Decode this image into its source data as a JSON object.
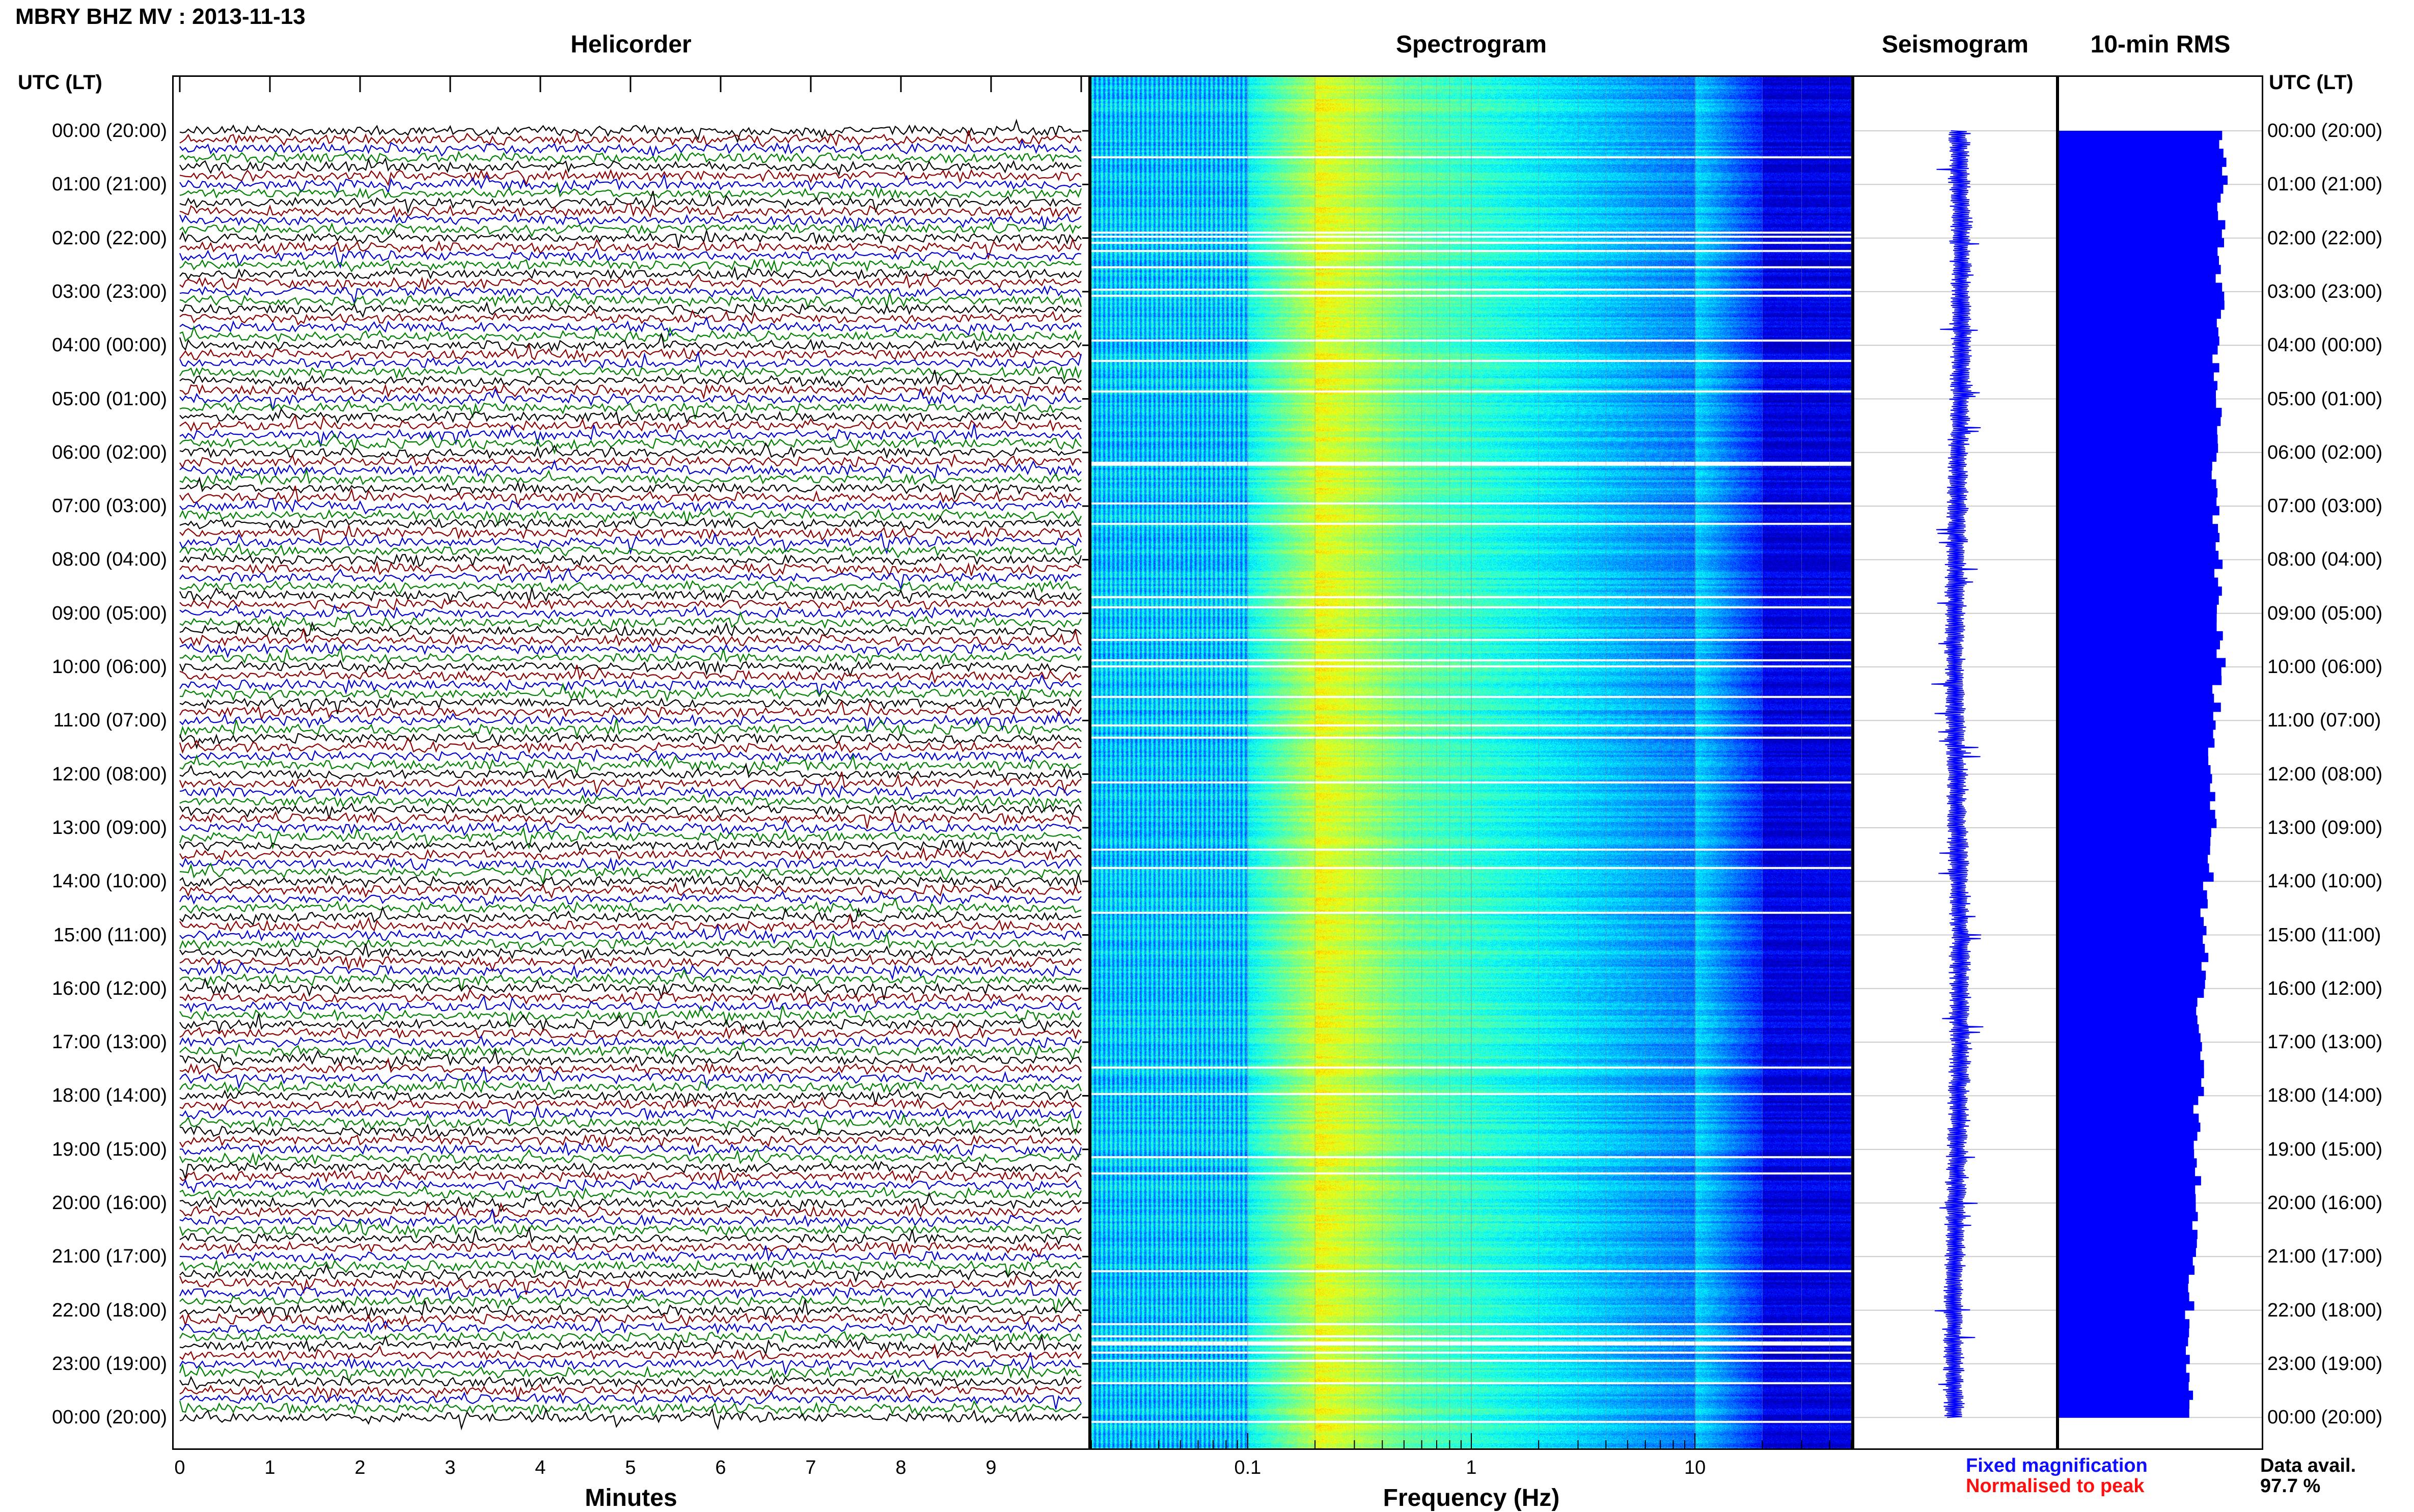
{
  "header": {
    "title": "MBRY BHZ MV : 2013-11-13",
    "utc_label_left": "UTC (LT)",
    "utc_label_right": "UTC (LT)"
  },
  "panels": {
    "helicorder": "Helicorder",
    "spectrogram": "Spectrogram",
    "seismogram": "Seismogram",
    "rms": "10-min RMS"
  },
  "time_labels": [
    "00:00 (20:00)",
    "01:00 (21:00)",
    "02:00 (22:00)",
    "03:00 (23:00)",
    "04:00 (00:00)",
    "05:00 (01:00)",
    "06:00 (02:00)",
    "07:00 (03:00)",
    "08:00 (04:00)",
    "09:00 (05:00)",
    "10:00 (06:00)",
    "11:00 (07:00)",
    "12:00 (08:00)",
    "13:00 (09:00)",
    "14:00 (10:00)",
    "15:00 (11:00)",
    "16:00 (12:00)",
    "17:00 (13:00)",
    "18:00 (14:00)",
    "19:00 (15:00)",
    "20:00 (16:00)",
    "21:00 (17:00)",
    "22:00 (18:00)",
    "23:00 (19:00)",
    "00:00 (20:00)"
  ],
  "x_axes": {
    "minutes_label": "Minutes",
    "minutes_ticks": [
      "0",
      "1",
      "2",
      "3",
      "4",
      "5",
      "6",
      "7",
      "8",
      "9"
    ],
    "frequency_label": "Frequency (Hz)",
    "frequency_ticks": [
      "0.1",
      "1",
      "10"
    ]
  },
  "legend": {
    "fixed": "Fixed magnification",
    "normalised": "Normalised to peak",
    "fixed_color": "#1010ff",
    "normalised_color": "#ff1010"
  },
  "data_availability": {
    "label": "Data avail.",
    "value": "97.7 %"
  },
  "chart_data": [
    {
      "type": "line",
      "panel": "Helicorder",
      "xlabel": "Minutes",
      "xlim": [
        0,
        10
      ],
      "trace_colors": [
        "#000000",
        "#8b0000",
        "#0000cd",
        "#008000"
      ],
      "traces_per_hour": 6,
      "hours": 24
    },
    {
      "type": "heatmap",
      "panel": "Spectrogram",
      "xlabel": "Frequency (Hz)",
      "xscale": "log",
      "xlim": [
        0.02,
        50
      ],
      "peak_band_hz": [
        0.2,
        0.5
      ]
    },
    {
      "type": "line",
      "panel": "Seismogram",
      "color": "#0000ff"
    },
    {
      "type": "bar",
      "panel": "10-min RMS",
      "color": "#0000ff",
      "orientation": "horizontal",
      "bins_per_hour": 6,
      "relative_level_by_hour": [
        0.81,
        0.8,
        0.79,
        0.8,
        0.78,
        0.79,
        0.77,
        0.78,
        0.79,
        0.8,
        0.78,
        0.76,
        0.76,
        0.74,
        0.72,
        0.72,
        0.7,
        0.7,
        0.68,
        0.68,
        0.66,
        0.65,
        0.64,
        0.64
      ]
    }
  ]
}
